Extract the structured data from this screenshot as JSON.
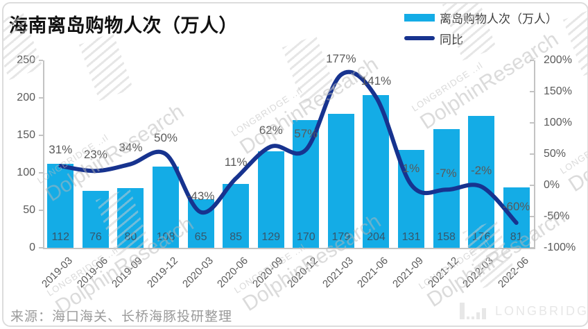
{
  "title": "海南离岛购物人次（万人）",
  "legend": [
    {
      "label": "离岛购物人次（万人）",
      "type": "bar",
      "color": "#14ACE6"
    },
    {
      "label": "同比",
      "type": "line",
      "color": "#17338F"
    }
  ],
  "source": "来源：海口海关、长桥海豚投研整理",
  "brand_logo": {
    "text": "LONGBRIDGE",
    "icon": "bar-chart-logo-icon"
  },
  "watermark": {
    "small": "LONGBRIDGE ..ıl",
    "large": "DolphinResearch"
  },
  "chart_data": {
    "type": "bar",
    "subtype": "combo-bar-line",
    "title": "海南离岛购物人次（万人）",
    "categories": [
      "2019-03",
      "2019-06",
      "2019-09",
      "2019-12",
      "2020-03",
      "2020-06",
      "2020-09",
      "2020-12",
      "2021-03",
      "2021-06",
      "2021-09",
      "2021-12",
      "2022-03",
      "2022-06"
    ],
    "series": [
      {
        "name": "离岛购物人次（万人）",
        "type": "bar",
        "axis": "left",
        "unit": "万人",
        "color": "#14ACE6",
        "values": [
          112,
          76,
          80,
          108,
          65,
          85,
          129,
          170,
          179,
          204,
          131,
          158,
          176,
          81
        ]
      },
      {
        "name": "同比",
        "type": "line",
        "axis": "right",
        "unit": "%",
        "color": "#17338F",
        "values": [
          31,
          23,
          34,
          50,
          -43,
          11,
          62,
          57,
          177,
          141,
          1,
          -7,
          -2,
          -60
        ],
        "point_labels": [
          "31%",
          "23%",
          "34%",
          "50%",
          "-43%",
          "11%",
          "62%",
          "57%",
          "177%",
          "141%",
          "1%",
          "-7%",
          "-2%",
          "-60%"
        ]
      }
    ],
    "left_axis": {
      "range": [
        0,
        250
      ],
      "tick_values": [
        0,
        50,
        100,
        150,
        200,
        250
      ],
      "tick_labels": [
        "0",
        "50",
        "100",
        "150",
        "200",
        "250"
      ]
    },
    "right_axis": {
      "range": [
        -100,
        200
      ],
      "tick_values": [
        -100,
        -50,
        0,
        50,
        100,
        150,
        200
      ],
      "tick_labels": [
        "-100%",
        "-50%",
        "0%",
        "50%",
        "100%",
        "150%",
        "200%"
      ]
    },
    "grid": false,
    "legend_position": "top-right",
    "x_label_rotation": -45
  }
}
